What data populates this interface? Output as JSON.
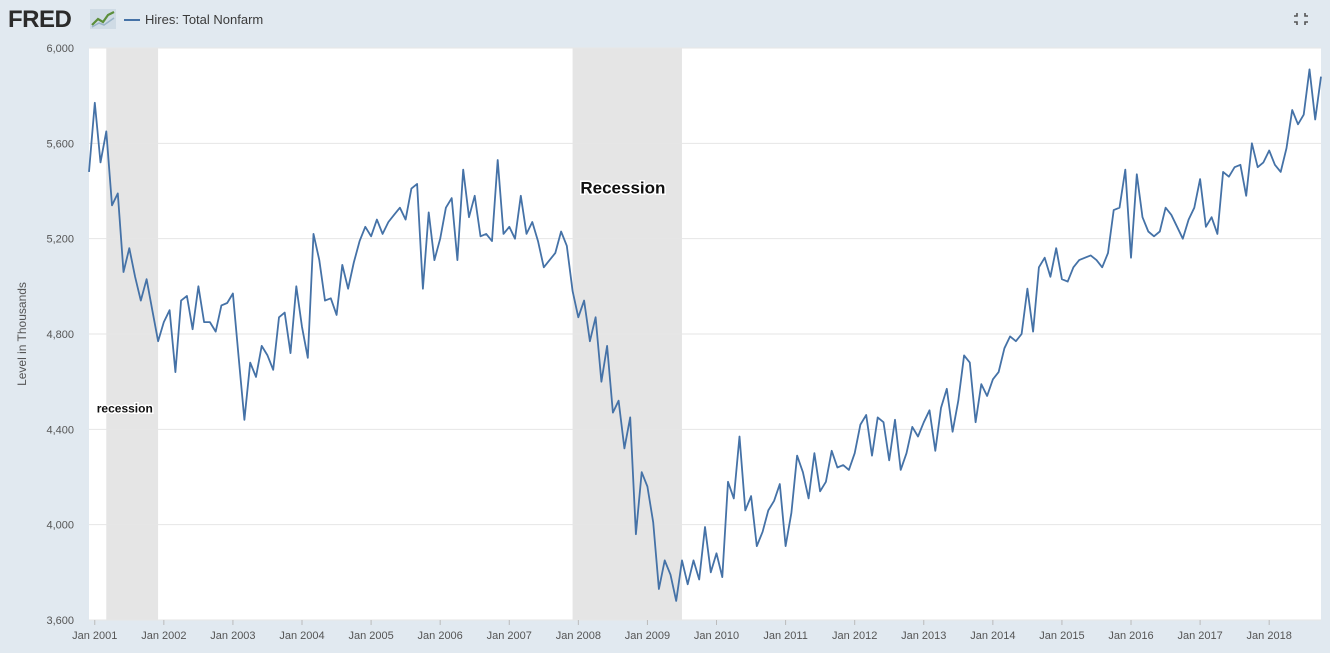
{
  "header": {
    "logo_text": "FRED",
    "logo_icon": "line-chart-icon",
    "legend_label": "Hires: Total Nonfarm",
    "collapse_icon": "collapse-icon"
  },
  "colors": {
    "series": "#4572a7",
    "recession": "#e5e5e5",
    "grid": "#e6e6e6",
    "background": "#e1e9f0",
    "plot": "#ffffff"
  },
  "chart_data": {
    "type": "line",
    "title": "",
    "xlabel": "",
    "ylabel": "Level in Thousands",
    "ylim": [
      3600,
      6000
    ],
    "yticks": [
      3600,
      4000,
      4400,
      4800,
      5200,
      5600,
      6000
    ],
    "ytick_labels": [
      "3,600",
      "4,000",
      "4,400",
      "4,800",
      "5,200",
      "5,600",
      "6,000"
    ],
    "xlim": [
      "2000-12",
      "2018-10"
    ],
    "xticks": [
      "2001-01",
      "2002-01",
      "2003-01",
      "2004-01",
      "2005-01",
      "2006-01",
      "2007-01",
      "2008-01",
      "2009-01",
      "2010-01",
      "2011-01",
      "2012-01",
      "2013-01",
      "2014-01",
      "2015-01",
      "2016-01",
      "2017-01",
      "2018-01"
    ],
    "xtick_labels": [
      "Jan 2001",
      "Jan 2002",
      "Jan 2003",
      "Jan 2004",
      "Jan 2005",
      "Jan 2006",
      "Jan 2007",
      "Jan 2008",
      "Jan 2009",
      "Jan 2010",
      "Jan 2011",
      "Jan 2012",
      "Jan 2013",
      "Jan 2014",
      "Jan 2015",
      "Jan 2016",
      "Jan 2017",
      "Jan 2018"
    ],
    "grid": true,
    "legend": "top-left",
    "recessions": [
      {
        "start": "2001-03",
        "end": "2001-11"
      },
      {
        "start": "2007-12",
        "end": "2009-06"
      }
    ],
    "annotations": [
      {
        "text": "recession",
        "x": "2001-01",
        "y": 4470
      },
      {
        "text": "Recession",
        "x": "2008-01",
        "y": 5390
      }
    ],
    "series": [
      {
        "name": "Hires: Total Nonfarm",
        "start": "2000-12",
        "values": [
          5480,
          5770,
          5520,
          5650,
          5340,
          5390,
          5060,
          5160,
          5040,
          4940,
          5030,
          4900,
          4770,
          4850,
          4900,
          4640,
          4940,
          4960,
          4820,
          5000,
          4850,
          4850,
          4810,
          4920,
          4930,
          4970,
          4700,
          4440,
          4680,
          4620,
          4750,
          4710,
          4650,
          4870,
          4890,
          4720,
          5000,
          4830,
          4700,
          5220,
          5110,
          4940,
          4950,
          4880,
          5090,
          4990,
          5100,
          5190,
          5250,
          5210,
          5280,
          5220,
          5270,
          5300,
          5330,
          5280,
          5410,
          5430,
          4990,
          5310,
          5110,
          5200,
          5330,
          5370,
          5110,
          5490,
          5290,
          5380,
          5210,
          5220,
          5190,
          5530,
          5220,
          5250,
          5200,
          5380,
          5220,
          5270,
          5190,
          5080,
          5110,
          5140,
          5230,
          5170,
          4980,
          4870,
          4940,
          4770,
          4870,
          4600,
          4750,
          4470,
          4520,
          4320,
          4450,
          3960,
          4220,
          4160,
          4010,
          3730,
          3850,
          3790,
          3680,
          3850,
          3750,
          3850,
          3770,
          3990,
          3800,
          3880,
          3780,
          4180,
          4110,
          4370,
          4060,
          4120,
          3910,
          3970,
          4060,
          4100,
          4170,
          3910,
          4050,
          4290,
          4220,
          4110,
          4300,
          4140,
          4180,
          4310,
          4240,
          4250,
          4230,
          4300,
          4420,
          4460,
          4290,
          4450,
          4430,
          4270,
          4440,
          4230,
          4300,
          4410,
          4370,
          4430,
          4480,
          4310,
          4490,
          4570,
          4390,
          4520,
          4710,
          4680,
          4430,
          4590,
          4540,
          4610,
          4640,
          4740,
          4790,
          4770,
          4800,
          4990,
          4810,
          5080,
          5120,
          5040,
          5160,
          5030,
          5020,
          5080,
          5110,
          5120,
          5130,
          5110,
          5080,
          5140,
          5320,
          5330,
          5490,
          5120,
          5470,
          5290,
          5230,
          5210,
          5230,
          5330,
          5300,
          5250,
          5200,
          5280,
          5330,
          5450,
          5250,
          5290,
          5220,
          5480,
          5460,
          5500,
          5510,
          5380,
          5600,
          5500,
          5520,
          5570,
          5510,
          5480,
          5580,
          5740,
          5680,
          5720,
          5910,
          5700,
          5880
        ]
      }
    ]
  }
}
